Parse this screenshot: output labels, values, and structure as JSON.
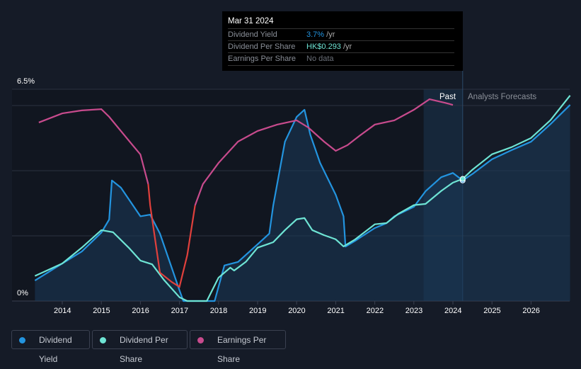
{
  "tooltip": {
    "date": "Mar 31 2024",
    "rows": [
      {
        "label": "Dividend Yield",
        "value": "3.7%",
        "unit": " /yr",
        "color": "#2394df"
      },
      {
        "label": "Dividend Per Share",
        "value": "HK$0.293",
        "unit": " /yr",
        "color": "#6ee4d4"
      },
      {
        "label": "Earnings Per Share",
        "value": "No data",
        "unit": "",
        "color": "#6b7079"
      }
    ]
  },
  "regions": {
    "past": "Past",
    "forecast": "Analysts Forecasts"
  },
  "legend": [
    {
      "label": "Dividend Yield",
      "color": "#2394df"
    },
    {
      "label": "Dividend Per Share",
      "color": "#6ee4d4"
    },
    {
      "label": "Earnings Per Share",
      "color": "#c84b8d"
    }
  ],
  "chart_data": {
    "type": "line",
    "y_axis": {
      "label_top": "6.5%",
      "label_bottom": "0%",
      "ylim": [
        0,
        6.5
      ],
      "unit": "%"
    },
    "x_ticks": [
      "2014",
      "2015",
      "2016",
      "2017",
      "2018",
      "2019",
      "2020",
      "2021",
      "2022",
      "2023",
      "2024",
      "2025",
      "2026"
    ],
    "xlim": [
      2012.7,
      2027
    ],
    "past_region": [
      2023.25,
      2024.25
    ],
    "series": [
      {
        "name": "Dividend Yield",
        "unit": "%",
        "color": "#2394df",
        "points": [
          [
            2013.3,
            0.63
          ],
          [
            2014,
            1.15
          ],
          [
            2014.5,
            1.52
          ],
          [
            2015,
            2.1
          ],
          [
            2015.2,
            2.5
          ],
          [
            2015.27,
            3.7
          ],
          [
            2015.5,
            3.48
          ],
          [
            2016,
            2.6
          ],
          [
            2016.25,
            2.65
          ],
          [
            2016.5,
            2.07
          ],
          [
            2017,
            0.33
          ],
          [
            2017.1,
            0
          ],
          [
            2017.9,
            0
          ],
          [
            2018.15,
            1.09
          ],
          [
            2018.5,
            1.2
          ],
          [
            2019,
            1.74
          ],
          [
            2019.3,
            2.07
          ],
          [
            2019.4,
            2.93
          ],
          [
            2019.7,
            4.89
          ],
          [
            2020,
            5.65
          ],
          [
            2020.2,
            5.87
          ],
          [
            2020.35,
            5.1
          ],
          [
            2020.6,
            4.24
          ],
          [
            2021,
            3.26
          ],
          [
            2021.2,
            2.6
          ],
          [
            2021.25,
            1.67
          ],
          [
            2021.5,
            1.85
          ],
          [
            2022,
            2.24
          ],
          [
            2022.3,
            2.39
          ],
          [
            2022.5,
            2.6
          ],
          [
            2023,
            2.89
          ],
          [
            2023.3,
            3.37
          ],
          [
            2023.7,
            3.8
          ],
          [
            2024,
            3.93
          ],
          [
            2024.25,
            3.7
          ],
          [
            2024.5,
            3.9
          ],
          [
            2025,
            4.35
          ],
          [
            2025.5,
            4.63
          ],
          [
            2026,
            4.89
          ],
          [
            2026.5,
            5.43
          ],
          [
            2027,
            6.02
          ]
        ]
      },
      {
        "name": "Dividend Per Share",
        "unit": "HK$",
        "scale_max": 0.508,
        "color": "#6ee4d4",
        "points": [
          [
            2013.3,
            0.06
          ],
          [
            2014,
            0.09
          ],
          [
            2014.5,
            0.128
          ],
          [
            2015,
            0.17
          ],
          [
            2015.3,
            0.165
          ],
          [
            2015.7,
            0.128
          ],
          [
            2016,
            0.097
          ],
          [
            2016.3,
            0.088
          ],
          [
            2016.6,
            0.051
          ],
          [
            2017,
            0.009
          ],
          [
            2017.2,
            0
          ],
          [
            2017.7,
            0
          ],
          [
            2018,
            0.056
          ],
          [
            2018.3,
            0.08
          ],
          [
            2018.4,
            0.073
          ],
          [
            2018.7,
            0.094
          ],
          [
            2019,
            0.128
          ],
          [
            2019.4,
            0.141
          ],
          [
            2019.7,
            0.17
          ],
          [
            2020,
            0.196
          ],
          [
            2020.2,
            0.199
          ],
          [
            2020.4,
            0.17
          ],
          [
            2020.7,
            0.158
          ],
          [
            2021,
            0.148
          ],
          [
            2021.2,
            0.131
          ],
          [
            2021.5,
            0.148
          ],
          [
            2022,
            0.184
          ],
          [
            2022.3,
            0.187
          ],
          [
            2022.6,
            0.209
          ],
          [
            2023,
            0.23
          ],
          [
            2023.3,
            0.233
          ],
          [
            2023.7,
            0.264
          ],
          [
            2024,
            0.284
          ],
          [
            2024.25,
            0.293
          ],
          [
            2024.5,
            0.315
          ],
          [
            2025,
            0.352
          ],
          [
            2025.5,
            0.369
          ],
          [
            2026,
            0.391
          ],
          [
            2026.5,
            0.434
          ],
          [
            2027,
            0.493
          ]
        ]
      },
      {
        "name": "Earnings Per Share",
        "unit": "index",
        "scale_max": 100,
        "color": "#c84b8d",
        "negative_color": "#e0403c",
        "negative_range": [
          2016.2,
          2017.4
        ],
        "points": [
          [
            2013.4,
            84.3
          ],
          [
            2014,
            88.6
          ],
          [
            2014.5,
            90
          ],
          [
            2015,
            90.6
          ],
          [
            2015.2,
            87
          ],
          [
            2015.5,
            80.3
          ],
          [
            2015.8,
            73.6
          ],
          [
            2016,
            69.2
          ],
          [
            2016.2,
            55.2
          ],
          [
            2016.25,
            45.2
          ],
          [
            2016.5,
            13.4
          ],
          [
            2016.8,
            9
          ],
          [
            2017,
            6.7
          ],
          [
            2017.2,
            21.7
          ],
          [
            2017.4,
            45.2
          ],
          [
            2017.6,
            55.2
          ],
          [
            2018,
            65.2
          ],
          [
            2018.5,
            75.3
          ],
          [
            2019,
            80.3
          ],
          [
            2019.5,
            83.3
          ],
          [
            2020,
            85.3
          ],
          [
            2020.3,
            81.9
          ],
          [
            2020.7,
            75.3
          ],
          [
            2021,
            70.9
          ],
          [
            2021.3,
            73.6
          ],
          [
            2021.6,
            77.9
          ],
          [
            2022,
            83.3
          ],
          [
            2022.5,
            85.3
          ],
          [
            2023,
            90.3
          ],
          [
            2023.4,
            95.3
          ],
          [
            2023.8,
            93.6
          ],
          [
            2024,
            92.6
          ]
        ]
      }
    ]
  }
}
